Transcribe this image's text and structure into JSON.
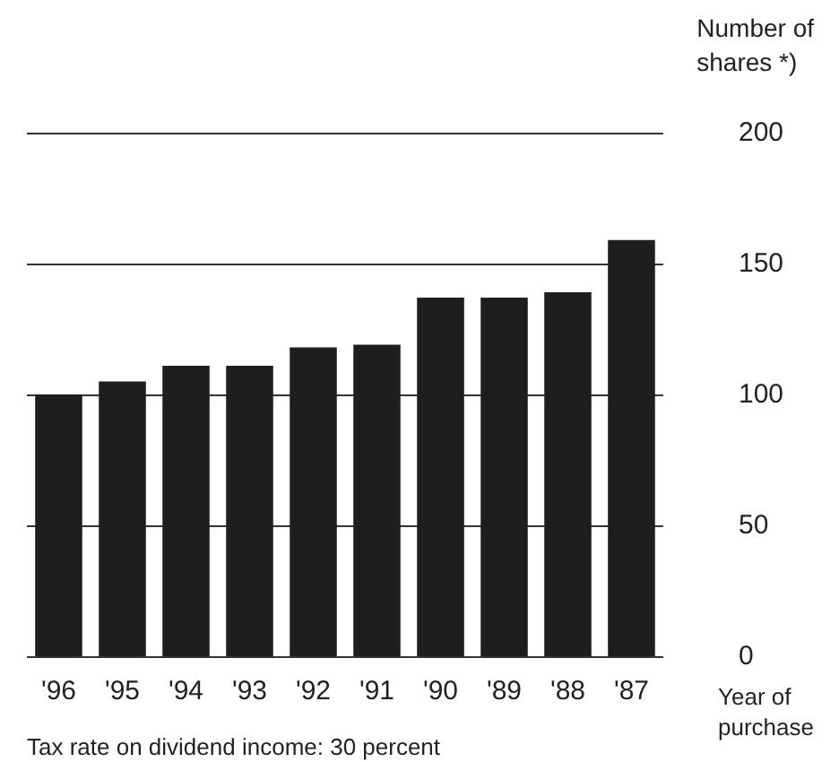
{
  "chart_data": {
    "type": "bar",
    "ylabel": "Number of shares *)",
    "xlabel": "Year of purchase",
    "annotations": [
      "Tax rate on dividend income: 30 percent"
    ],
    "categories": [
      "'96",
      "'95",
      "'94",
      "'93",
      "'92",
      "'91",
      "'90",
      "'89",
      "'88",
      "'87"
    ],
    "values": [
      100,
      105,
      111,
      111,
      118,
      119,
      137,
      137,
      139,
      159
    ],
    "color": "#1e1e1e",
    "ylim": [
      0,
      200
    ],
    "yticks": [
      0,
      50,
      100,
      150,
      200
    ],
    "grid": "y"
  }
}
